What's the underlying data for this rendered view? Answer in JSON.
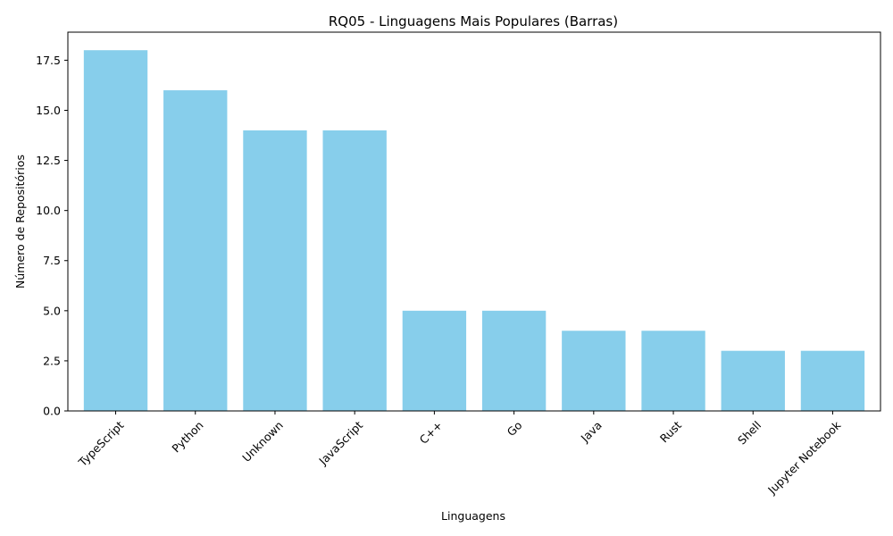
{
  "chart_data": {
    "type": "bar",
    "title": "RQ05 - Linguagens Mais Populares (Barras)",
    "xlabel": "Linguagens",
    "ylabel": "Número de Repositórios",
    "categories": [
      "TypeScript",
      "Python",
      "Unknown",
      "JavaScript",
      "C++",
      "Go",
      "Java",
      "Rust",
      "Shell",
      "Jupyter Notebook"
    ],
    "values": [
      18,
      16,
      14,
      14,
      5,
      5,
      4,
      4,
      3,
      3
    ],
    "ylim": [
      0,
      18.9
    ],
    "yticks": [
      0.0,
      2.5,
      5.0,
      7.5,
      10.0,
      12.5,
      15.0,
      17.5
    ],
    "ytick_labels": [
      "0.0",
      "2.5",
      "5.0",
      "7.5",
      "10.0",
      "12.5",
      "15.0",
      "17.5"
    ],
    "bar_color": "#87ceeb",
    "grid": false,
    "xtick_rotation_deg": 45
  }
}
